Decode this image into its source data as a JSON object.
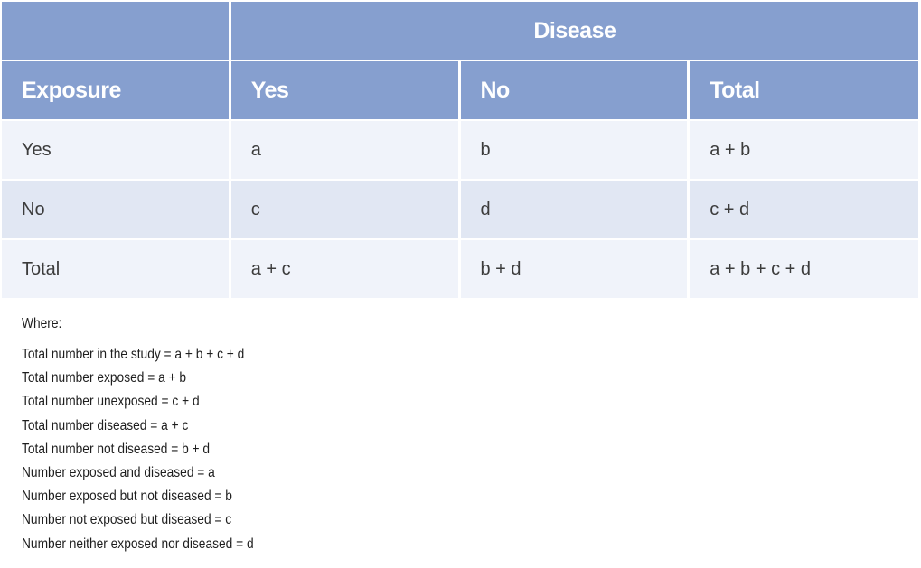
{
  "table": {
    "group_header": "Disease",
    "columns": [
      "Exposure",
      "Yes",
      "No",
      "Total"
    ],
    "rows": [
      [
        "Yes",
        "a",
        "b",
        "a + b"
      ],
      [
        "No",
        "c",
        "d",
        "c + d"
      ],
      [
        "Total",
        "a + c",
        "b + d",
        "a + b + c + d"
      ]
    ]
  },
  "notes": {
    "heading": "Where:",
    "definitions": [
      "Total number in the study = a + b + c + d",
      "Total number exposed = a + b",
      "Total number unexposed = c + d",
      "Total number diseased = a + c",
      "Total number not diseased = b + d",
      "Number exposed and diseased = a",
      "Number exposed but not diseased = b",
      "Number not exposed but diseased = c",
      "Number neither exposed nor diseased = d"
    ]
  },
  "colors": {
    "header_bg": "#869fcf",
    "row_light": "#f0f3fa",
    "row_dark": "#e1e7f3"
  }
}
